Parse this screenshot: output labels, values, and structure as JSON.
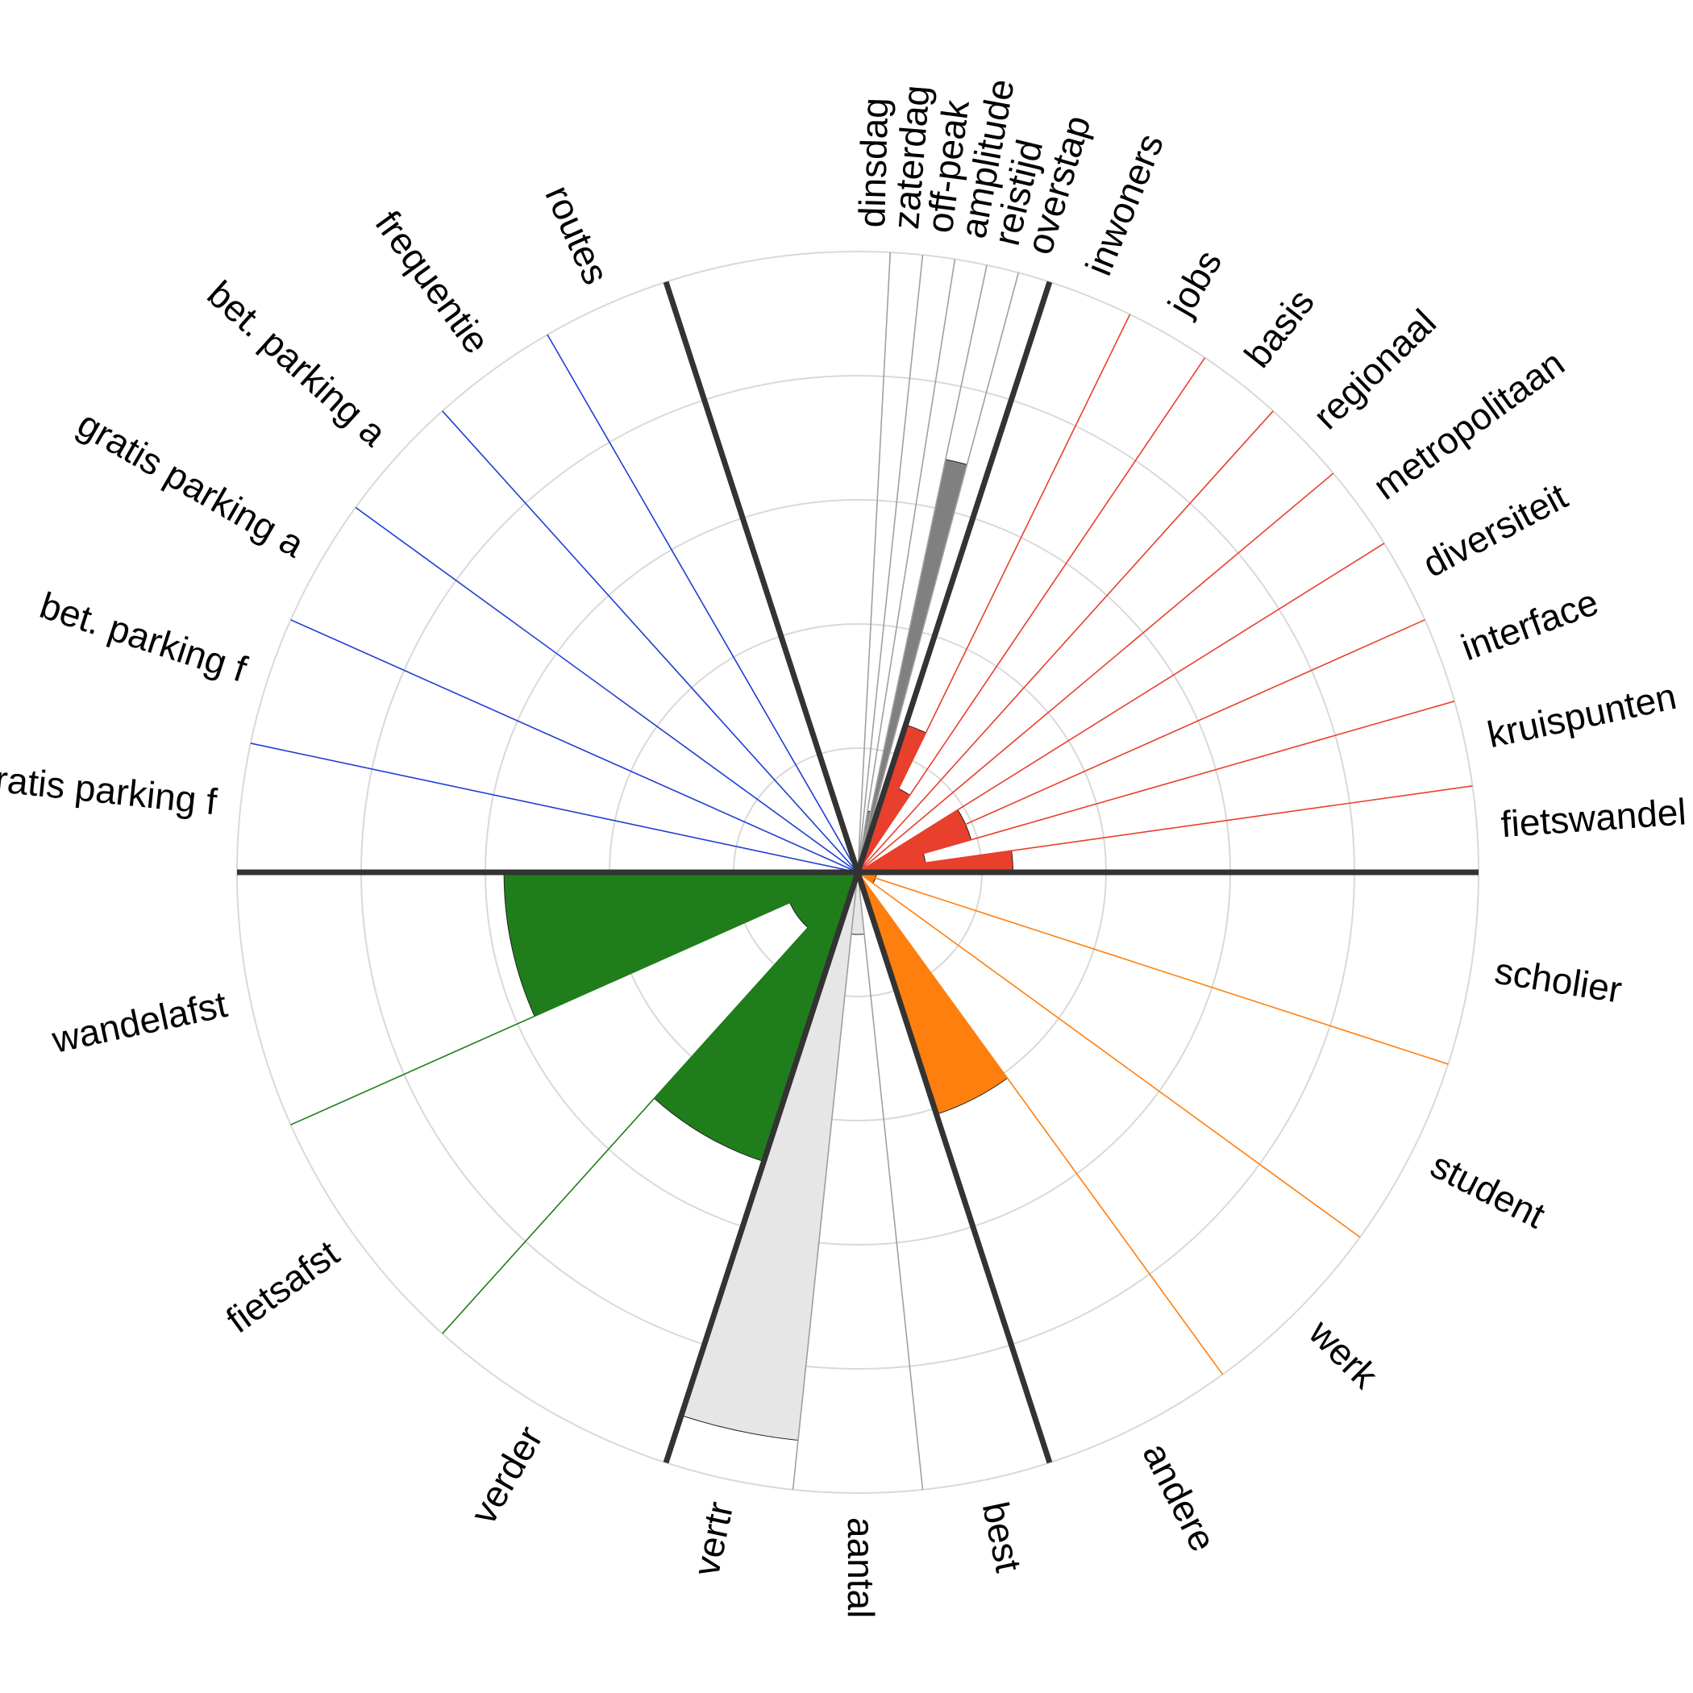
{
  "chart_data": {
    "type": "polar-bar",
    "title": "",
    "rmax": 5,
    "grid_rings": [
      1,
      2,
      3,
      4,
      5
    ],
    "grid": true,
    "legend": "none",
    "groups": [
      {
        "name": "",
        "color": "#4a4a4a",
        "start_deg": -90,
        "end_deg": -72,
        "categories": [
          "dinsdag",
          "zaterdag",
          "off-peak",
          "amplitude",
          "reistijd",
          "overstap"
        ],
        "values": [
          0.0,
          0.0,
          0.0,
          0.05,
          0.0,
          0.0
        ],
        "colors": [
          "#5a5a5a",
          "#5a5a5a",
          "#5a5a5a",
          "#4a4a4a",
          "#808080",
          "#808080"
        ]
      },
      {
        "name": "",
        "color": "#4a4a4a",
        "start_deg": -90,
        "end_deg": -72,
        "categories": [
          "dinsdag",
          "zaterdag",
          "off-peak",
          "amplitude",
          "reistijd",
          "overstap"
        ],
        "values": [
          0.0,
          0.0,
          0.2,
          0.5,
          3.4,
          0.0
        ],
        "colors": [
          "#808080",
          "#808080",
          "#808080",
          "#808080",
          "#808080",
          "#808080"
        ]
      },
      {
        "name": "",
        "color": "#e8402c",
        "start_deg": -72,
        "end_deg": 0,
        "categories": [
          "inwoners",
          "jobs",
          "basis",
          "regionaal",
          "metropolitaan",
          "diversiteit",
          "interface",
          "kruispunten",
          "fietswandel"
        ],
        "values": [
          1.25,
          0.75,
          0.0,
          0.0,
          0.0,
          0.95,
          0.95,
          0.55,
          1.25
        ],
        "colors": [
          "#e8402c",
          "#e8402c",
          "#e8402c",
          "#e8402c",
          "#e8402c",
          "#e8402c",
          "#e8402c",
          "#e8402c",
          "#e8402c"
        ]
      },
      {
        "name": "",
        "color": "#ff7f0e",
        "start_deg": 0,
        "end_deg": 72,
        "categories": [
          "scholier",
          "student",
          "werk",
          "andere"
        ],
        "values": [
          0.15,
          0.15,
          0.0,
          2.05
        ],
        "colors": [
          "#ff7f0e",
          "#ff7f0e",
          "#ff7f0e",
          "#ff7f0e"
        ]
      },
      {
        "name": "",
        "color": "#4a4a4a",
        "start_deg": 72,
        "end_deg": 108,
        "categories": [
          "best",
          "aantal",
          "vertr"
        ],
        "values": [
          0.0,
          0.5,
          4.6
        ],
        "colors": [
          "#e6e6e6",
          "#e6e6e6",
          "#e6e6e6"
        ]
      },
      {
        "name": "",
        "color": "#207d1b",
        "start_deg": 108,
        "end_deg": 180,
        "categories": [
          "verder",
          "fietsafst",
          "wandelafst"
        ],
        "values": [
          2.45,
          0.6,
          2.85
        ],
        "colors": [
          "#207d1b",
          "#207d1b",
          "#207d1b"
        ]
      },
      {
        "name": "",
        "color": "#1f3fd1",
        "start_deg": 180,
        "end_deg": 252,
        "categories": [
          "gratis parking f",
          "bet. parking f",
          "gratis parking a",
          "bet. parking a",
          "frequentie",
          "routes"
        ],
        "values": [
          0.1,
          0.0,
          0.0,
          0.0,
          0.0,
          0.0
        ],
        "colors": [
          "#1f3fd1",
          "#1f3fd1",
          "#1f3fd1",
          "#1f3fd1",
          "#1f3fd1",
          "#1f3fd1"
        ]
      }
    ],
    "labels_override": {
      "top_group": [
        "dinsdag",
        "zaterdag",
        "off-peak",
        "amplitude",
        "reistijd",
        "overstap"
      ]
    }
  }
}
